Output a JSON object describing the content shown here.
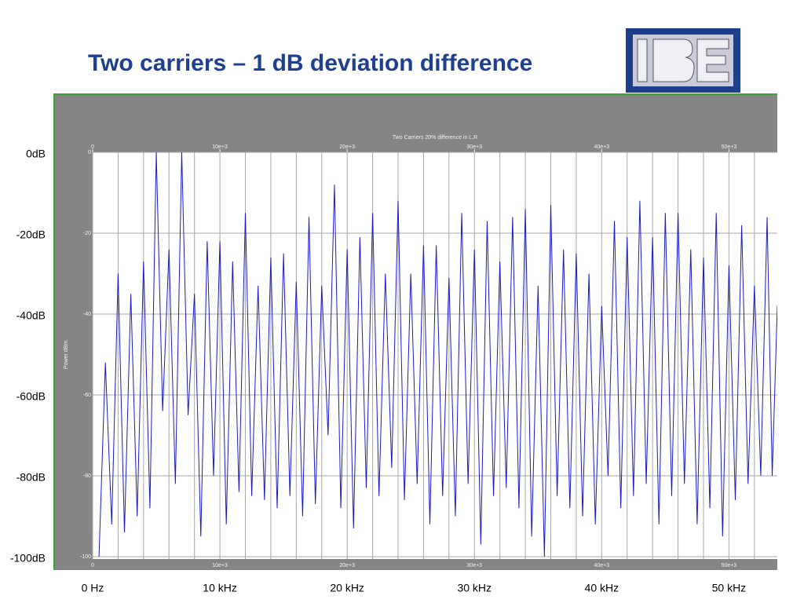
{
  "slide_title": "Two carriers – 1 dB deviation difference",
  "chart_data": {
    "type": "line",
    "title": "Two Carriers 20% difference in L,R",
    "y_label": "Power dBm",
    "x": [
      500,
      1000,
      1500,
      2000,
      2500,
      3000,
      3500,
      4000,
      4500,
      5000,
      5500,
      6000,
      6500,
      7000,
      7500,
      8000,
      8500,
      9000,
      9500,
      10000,
      10500,
      11000,
      11500,
      12000,
      12500,
      13000,
      13500,
      14000,
      14500,
      15000,
      15500,
      16000,
      16500,
      17000,
      17500,
      18000,
      18500,
      19000,
      19500,
      20000,
      20500,
      21000,
      21500,
      22000,
      22500,
      23000,
      23500,
      24000,
      24500,
      25000,
      25500,
      26000,
      26500,
      27000,
      27500,
      28000,
      28500,
      29000,
      29500,
      30000,
      30500,
      31000,
      31500,
      32000,
      32500,
      33000,
      33500,
      34000,
      34500,
      35000,
      35500,
      36000,
      36500,
      37000,
      37500,
      38000,
      38500,
      39000,
      39500,
      40000,
      40500,
      41000,
      41500,
      42000,
      42500,
      43000,
      43500,
      44000,
      44500,
      45000,
      45500,
      46000,
      46500,
      47000,
      47500,
      48000,
      48500,
      49000,
      49500,
      50000,
      50500,
      51000,
      51500,
      52000,
      52500,
      53000,
      53400,
      53800
    ],
    "series": [
      {
        "name": "Power",
        "color": "#1a1acc",
        "values": [
          -100,
          -52,
          -92,
          -30,
          -94,
          -35,
          -90,
          -27,
          -88,
          0,
          -64,
          -24,
          -82,
          0,
          -65,
          -35,
          -95,
          -22,
          -80,
          -22,
          -92,
          -27,
          -84,
          -15,
          -85,
          -33,
          -86,
          -26,
          -88,
          -25,
          -85,
          -32,
          -90,
          -16,
          -87,
          -33,
          -70,
          -8,
          -88,
          -24,
          -93,
          -21,
          -83,
          -15,
          -85,
          -30,
          -78,
          -12,
          -86,
          -30,
          -82,
          -23,
          -92,
          -23,
          -85,
          -31,
          -90,
          -15,
          -82,
          -24,
          -97,
          -17,
          -85,
          -27,
          -83,
          -16,
          -88,
          -14,
          -95,
          -33,
          -100,
          -13,
          -85,
          -24,
          -88,
          -25,
          -90,
          -30,
          -92,
          -38,
          -80,
          -17,
          -88,
          -21,
          -85,
          -12,
          -82,
          -21,
          -92,
          -15,
          -85,
          -15,
          -82,
          -24,
          -92,
          -26,
          -88,
          -15,
          -95,
          -28,
          -86,
          -18,
          -82,
          -33,
          -80,
          -16,
          -80,
          -38
        ]
      }
    ],
    "xlim": [
      0,
      53800
    ],
    "ylim": [
      -100,
      0
    ],
    "xticks": [
      0,
      {
        "value": 10000,
        "label": "10e+3"
      },
      {
        "value": 20000,
        "label": "20e+3"
      },
      {
        "value": 30000,
        "label": "30e+3"
      },
      {
        "value": 40000,
        "label": "40e+3"
      },
      {
        "value": 50000,
        "label": "50e+3"
      }
    ],
    "yticks": [
      0,
      -20,
      -40,
      -60,
      -80,
      -100
    ],
    "x_gridlines": [
      0,
      2000,
      4000,
      6000,
      8000,
      10000,
      12000,
      14000,
      16000,
      18000,
      20000,
      22000,
      24000,
      26000,
      28000,
      30000,
      32000,
      34000,
      36000,
      38000,
      40000,
      42000,
      44000,
      46000,
      48000,
      50000,
      52000
    ],
    "grid": true,
    "outer_yticks": [
      {
        "value": 0,
        "label": "0dB"
      },
      {
        "value": -20,
        "label": "-20dB"
      },
      {
        "value": -40,
        "label": "-40dB"
      },
      {
        "value": -60,
        "label": "-60dB"
      },
      {
        "value": -80,
        "label": "-80dB"
      },
      {
        "value": -100,
        "label": "-100dB"
      }
    ],
    "outer_xticks": [
      {
        "value": 0,
        "label": "0 Hz"
      },
      {
        "value": 10000,
        "label": "10 kHz"
      },
      {
        "value": 20000,
        "label": "20 kHz"
      },
      {
        "value": 30000,
        "label": "30 kHz"
      },
      {
        "value": 40000,
        "label": "40 kHz"
      },
      {
        "value": 50000,
        "label": "50 kHz"
      }
    ]
  }
}
